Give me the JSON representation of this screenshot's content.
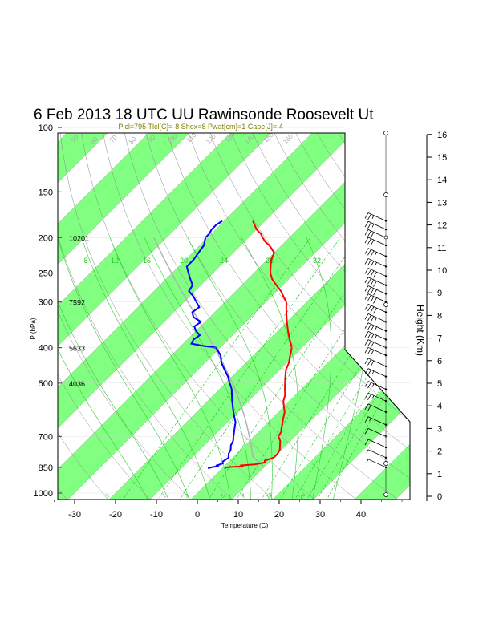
{
  "chart_data": {
    "type": "skew-t",
    "title": "6 Feb 2013 18 UTC UU Rawinsonde Roosevelt Ut",
    "subtitle": "Plcl=795 Tlcl[C]=-8 Shox=8 Pwat[cm]=1 Cape[J]= 4",
    "xlabel": "Temperature (C)",
    "ylabel": "P (hPa)",
    "right_axis_label": "Height (Km)",
    "pressure_ticks": [
      100,
      150,
      200,
      250,
      300,
      400,
      500,
      700,
      850,
      1000
    ],
    "temperature_ticks": [
      -30,
      -20,
      -10,
      0,
      10,
      20,
      30,
      40
    ],
    "xlim": [
      -35,
      52
    ],
    "ylim_hpa": [
      1050,
      100
    ],
    "height_ticks_km": [
      0,
      1,
      2,
      3,
      4,
      5,
      6,
      7,
      8,
      9,
      10,
      11,
      12,
      13,
      14,
      15,
      16
    ],
    "height_annotations": [
      {
        "p": 200,
        "text": "10201"
      },
      {
        "p": 300,
        "text": "7592"
      },
      {
        "p": 400,
        "text": "5633"
      },
      {
        "p": 500,
        "text": "4036"
      }
    ],
    "mixing_ratio_labels": [
      "8",
      "12",
      "16",
      "20",
      "24",
      "28",
      "32"
    ],
    "theta_labels": [
      "50",
      "60",
      "70",
      "80",
      "90",
      "100",
      "110",
      "120",
      "130",
      "140",
      "150",
      "160"
    ],
    "dry_adiabat_labels": [
      "-40",
      "-30",
      "-20",
      "-10",
      "0",
      "10",
      "20",
      "30",
      "40"
    ],
    "series": [
      {
        "name": "temperature",
        "color": "#ff0000",
        "p": [
          855,
          852,
          848,
          845,
          840,
          835,
          825,
          815,
          800,
          780,
          760,
          740,
          720,
          700,
          680,
          660,
          640,
          620,
          600,
          580,
          560,
          540,
          520,
          500,
          480,
          460,
          440,
          420,
          400,
          380,
          360,
          340,
          320,
          300,
          290,
          280,
          270,
          260,
          250,
          240,
          230,
          225,
          220,
          215,
          210,
          205,
          200,
          195,
          190,
          185,
          180
        ],
        "t": [
          1.0,
          0.5,
          2.0,
          4.5,
          4.0,
          7.0,
          9.0,
          8.5,
          10.0,
          10.0,
          9.5,
          8.5,
          7.5,
          6.0,
          5.5,
          4.5,
          3.5,
          2.5,
          1.5,
          0.0,
          -1.5,
          -2.5,
          -4.0,
          -5.5,
          -7.0,
          -8.5,
          -9.5,
          -11.0,
          -12.5,
          -15.0,
          -17.5,
          -20.0,
          -22.5,
          -25.0,
          -27.0,
          -29.0,
          -31.5,
          -34.0,
          -36.0,
          -37.5,
          -39.0,
          -39.5,
          -40.0,
          -41.5,
          -43.0,
          -45.0,
          -46.5,
          -48.0,
          -50.0,
          -51.5,
          -53.0
        ]
      },
      {
        "name": "dewpoint",
        "color": "#0000ff",
        "p": [
          855,
          852,
          848,
          845,
          840,
          830,
          820,
          800,
          780,
          760,
          740,
          720,
          700,
          680,
          660,
          640,
          620,
          600,
          580,
          560,
          540,
          520,
          500,
          480,
          460,
          440,
          420,
          400,
          395,
          390,
          380,
          370,
          360,
          350,
          340,
          330,
          320,
          310,
          300,
          290,
          280,
          270,
          260,
          250,
          240,
          230,
          220,
          210,
          200,
          195,
          190,
          185,
          180
        ],
        "t": [
          -3.5,
          -3.0,
          -2.5,
          -1.5,
          -2.0,
          -1.0,
          -1.5,
          -1.0,
          -2.0,
          -2.5,
          -3.5,
          -4.0,
          -5.0,
          -6.0,
          -7.0,
          -8.0,
          -9.5,
          -11.0,
          -12.5,
          -14.0,
          -15.5,
          -17.0,
          -19.0,
          -21.0,
          -23.5,
          -26.0,
          -28.0,
          -31.0,
          -35.0,
          -38.0,
          -38.5,
          -38.0,
          -40.0,
          -41.5,
          -41.0,
          -44.0,
          -45.5,
          -45.0,
          -47.0,
          -49.0,
          -51.5,
          -52.0,
          -54.0,
          -56.0,
          -58.0,
          -58.0,
          -58.5,
          -59.0,
          -60.5,
          -60.5,
          -61.0,
          -61.0,
          -60.5
        ]
      }
    ],
    "wind_barbs": [
      {
        "p": 850,
        "spd": 5
      },
      {
        "p": 800,
        "spd": 5
      },
      {
        "p": 750,
        "spd": 10
      },
      {
        "p": 700,
        "spd": 10
      },
      {
        "p": 650,
        "spd": 15
      },
      {
        "p": 600,
        "spd": 20
      },
      {
        "p": 560,
        "spd": 25
      },
      {
        "p": 520,
        "spd": 25
      },
      {
        "p": 480,
        "spd": 25
      },
      {
        "p": 450,
        "spd": 30
      },
      {
        "p": 420,
        "spd": 30
      },
      {
        "p": 400,
        "spd": 30
      },
      {
        "p": 380,
        "spd": 35
      },
      {
        "p": 360,
        "spd": 35
      },
      {
        "p": 340,
        "spd": 35
      },
      {
        "p": 320,
        "spd": 40
      },
      {
        "p": 300,
        "spd": 40
      },
      {
        "p": 285,
        "spd": 40
      },
      {
        "p": 270,
        "spd": 40
      },
      {
        "p": 255,
        "spd": 40
      },
      {
        "p": 240,
        "spd": 35
      },
      {
        "p": 225,
        "spd": 35
      },
      {
        "p": 210,
        "spd": 30
      },
      {
        "p": 200,
        "spd": 30
      },
      {
        "p": 190,
        "spd": 25
      },
      {
        "p": 180,
        "spd": 25
      }
    ]
  }
}
